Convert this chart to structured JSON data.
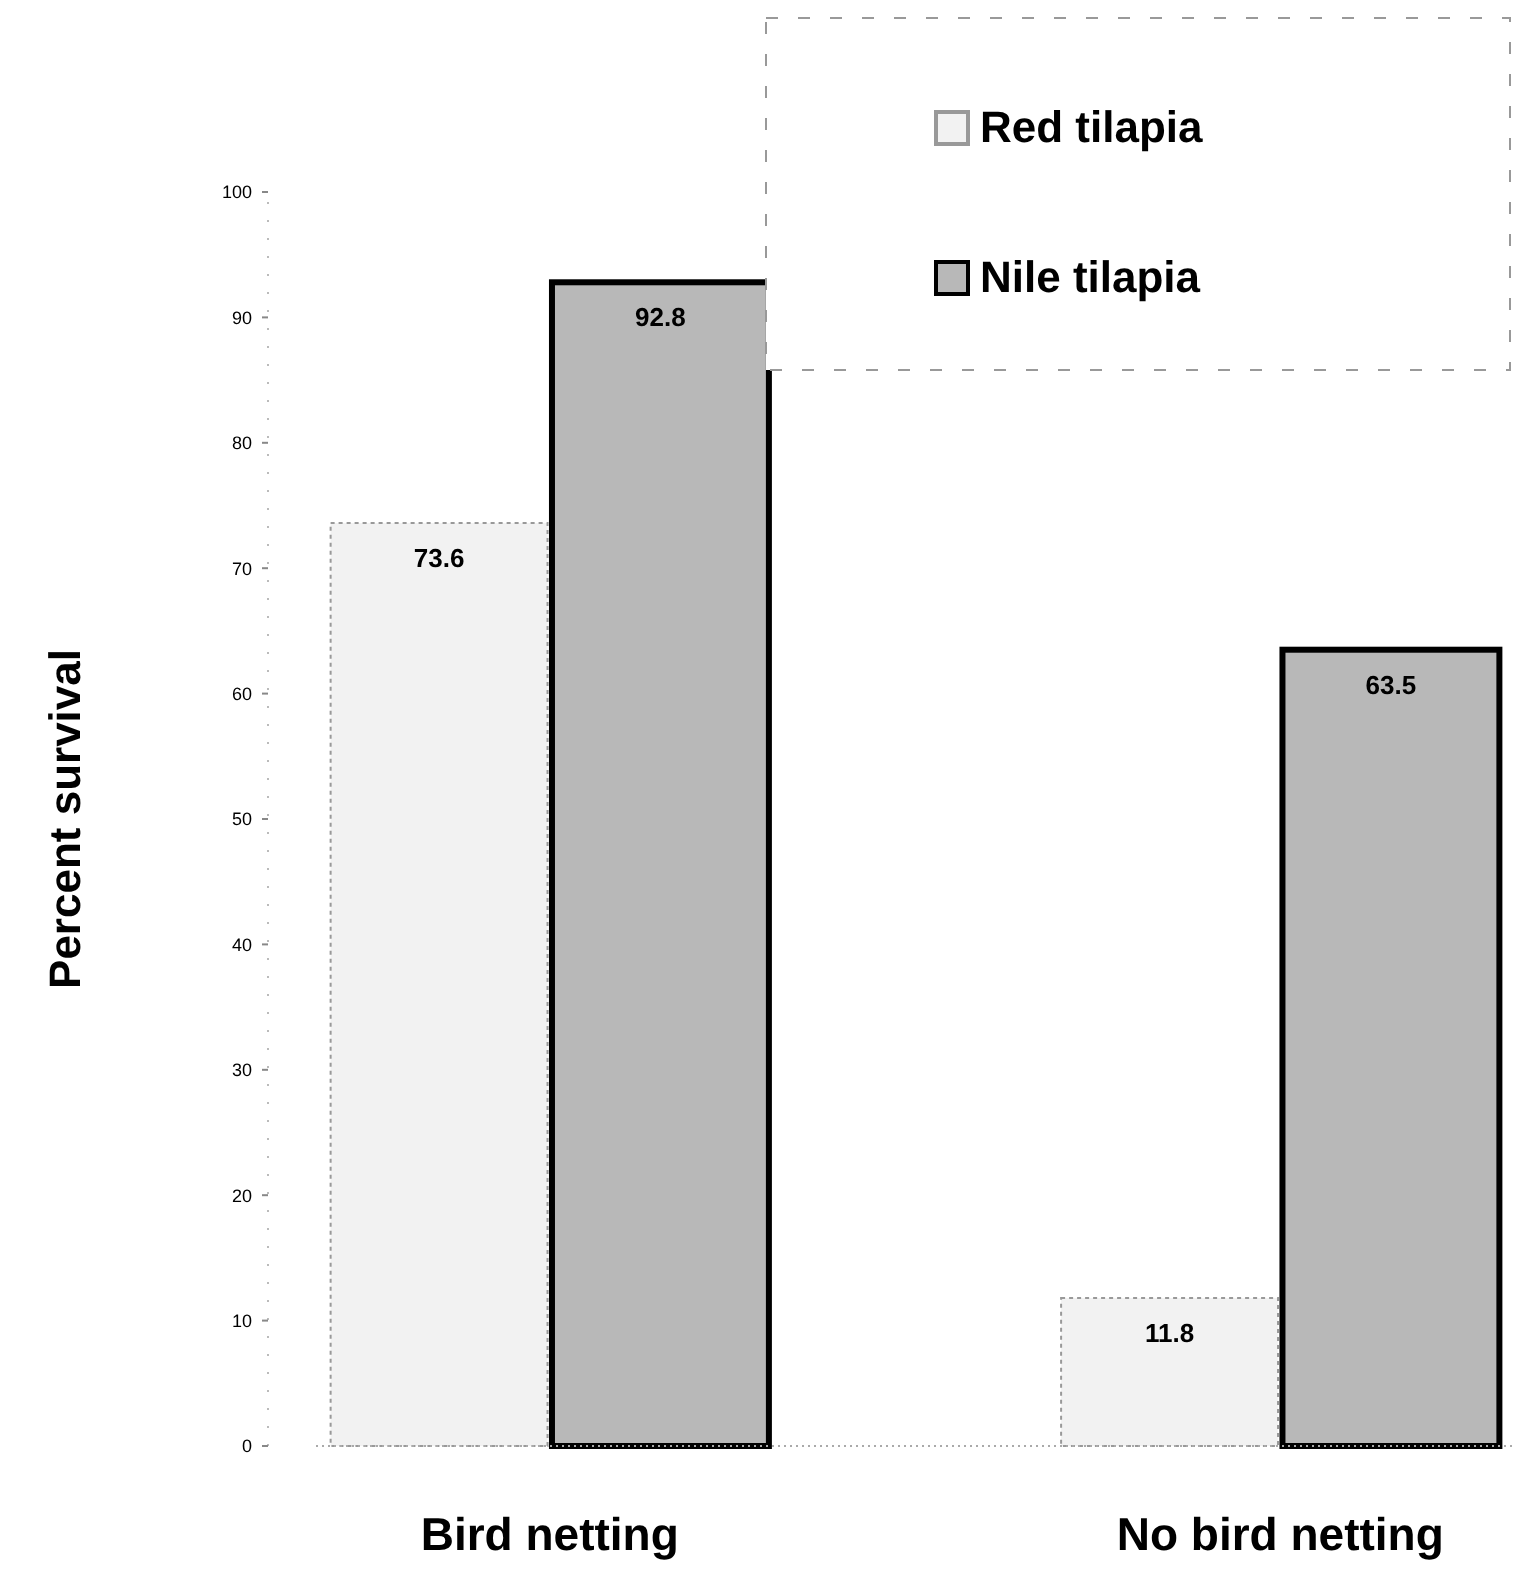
{
  "chart_data": {
    "type": "bar",
    "ylabel": "Percent survival",
    "categories": [
      "Bird netting",
      "No bird netting"
    ],
    "series": [
      {
        "name": "Red tilapia",
        "color": "#f2f2f2",
        "values": [
          73.6,
          11.8
        ]
      },
      {
        "name": "Nile tilapia",
        "color": "#b8b8b8",
        "values": [
          92.8,
          63.5
        ]
      }
    ],
    "ylim": [
      0,
      100
    ],
    "yticks": [
      0,
      10,
      20,
      30,
      40,
      50,
      60,
      70,
      80,
      90,
      100
    ],
    "data_labels": true,
    "legend": "top right",
    "grid": false
  }
}
